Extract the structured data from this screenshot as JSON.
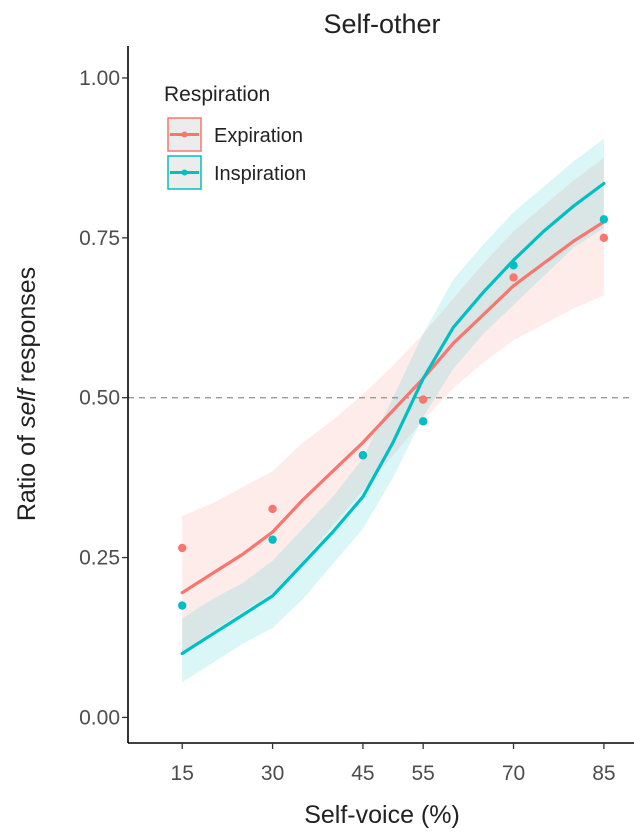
{
  "chart_data": {
    "type": "line",
    "title": "Self-other",
    "xlabel": "Self-voice (%)",
    "ylabel": {
      "before": "Ratio of ",
      "italic": "self",
      "after": " responses"
    },
    "x_categories": [
      "15",
      "30",
      "45",
      "55",
      "70",
      "85"
    ],
    "x_values": [
      15,
      30,
      45,
      55,
      70,
      85
    ],
    "xlim": [
      6,
      90
    ],
    "ylim": [
      -0.04,
      1.05
    ],
    "y_ticks": [
      0.0,
      0.25,
      0.5,
      0.75,
      1.0
    ],
    "y_tick_labels": [
      "0.00",
      "0.25",
      "0.50",
      "0.75",
      "1.00"
    ],
    "reference_line": {
      "y": 0.5,
      "style": "dashed"
    },
    "legend": {
      "title": "Respiration",
      "position": "top-left"
    },
    "grid": false,
    "series": [
      {
        "name": "Expiration",
        "color": "#F8766D",
        "points": [
          0.265,
          0.326,
          0.41,
          0.497,
          0.688,
          0.75
        ],
        "fit_x": [
          15,
          20,
          25,
          30,
          35,
          40,
          45,
          50,
          55,
          60,
          65,
          70,
          75,
          80,
          85
        ],
        "fit": [
          0.195,
          0.225,
          0.255,
          0.29,
          0.34,
          0.385,
          0.43,
          0.48,
          0.53,
          0.585,
          0.63,
          0.675,
          0.71,
          0.745,
          0.775
        ],
        "ci_lower": [
          0.1,
          0.135,
          0.165,
          0.195,
          0.245,
          0.3,
          0.355,
          0.41,
          0.465,
          0.515,
          0.555,
          0.59,
          0.615,
          0.64,
          0.66
        ],
        "ci_upper": [
          0.315,
          0.335,
          0.36,
          0.385,
          0.43,
          0.465,
          0.505,
          0.55,
          0.6,
          0.655,
          0.71,
          0.76,
          0.8,
          0.84,
          0.875
        ]
      },
      {
        "name": "Inspiration",
        "color": "#00BFC4",
        "points": [
          0.175,
          0.278,
          0.41,
          0.463,
          0.707,
          0.779
        ],
        "fit_x": [
          15,
          20,
          25,
          30,
          35,
          40,
          45,
          50,
          55,
          60,
          65,
          70,
          75,
          80,
          85
        ],
        "fit": [
          0.1,
          0.13,
          0.16,
          0.19,
          0.24,
          0.29,
          0.345,
          0.43,
          0.53,
          0.61,
          0.665,
          0.715,
          0.76,
          0.8,
          0.835
        ],
        "ci_lower": [
          0.055,
          0.085,
          0.115,
          0.14,
          0.185,
          0.24,
          0.295,
          0.375,
          0.47,
          0.545,
          0.6,
          0.645,
          0.69,
          0.735,
          0.765
        ],
        "ci_upper": [
          0.155,
          0.185,
          0.21,
          0.245,
          0.295,
          0.345,
          0.405,
          0.5,
          0.6,
          0.685,
          0.74,
          0.79,
          0.83,
          0.87,
          0.905
        ]
      }
    ]
  }
}
